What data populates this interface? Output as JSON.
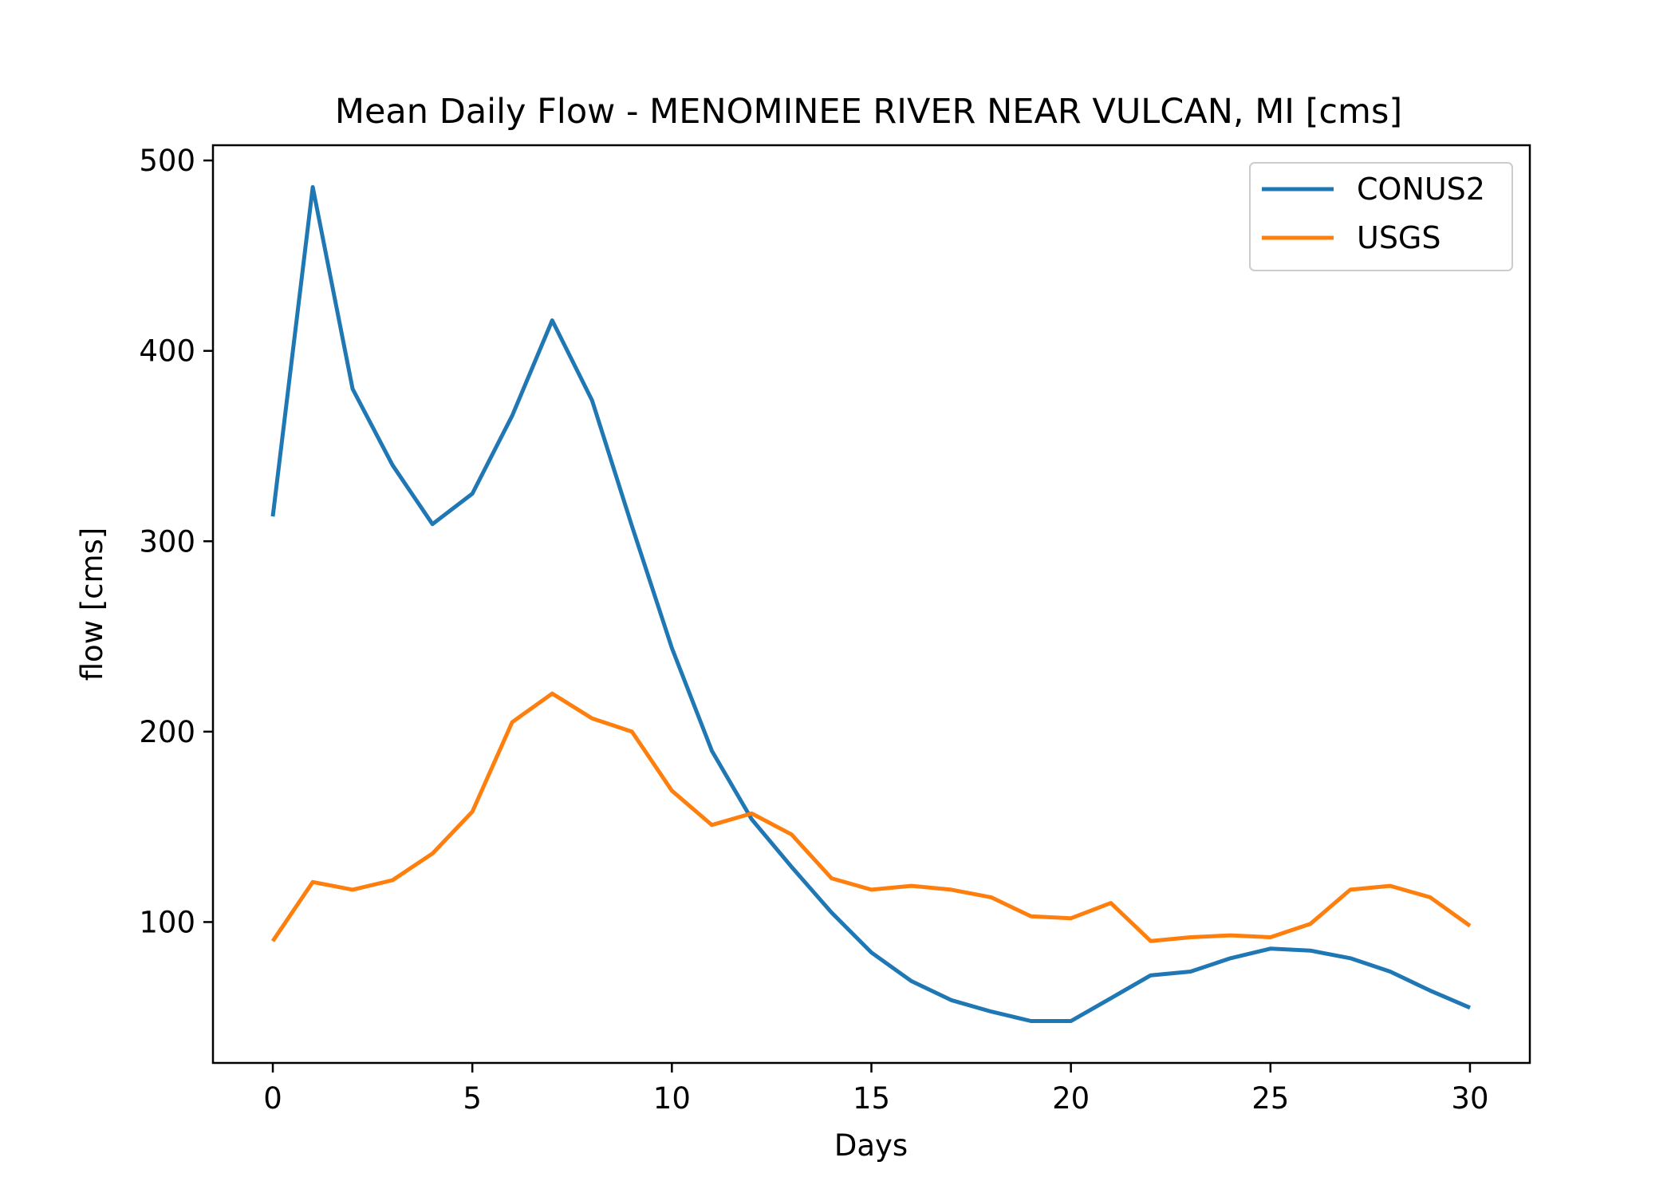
{
  "chart_data": {
    "type": "line",
    "title": "Mean Daily Flow - MENOMINEE RIVER NEAR VULCAN, MI [cms]",
    "xlabel": "Days",
    "ylabel": "flow [cms]",
    "xlim": [
      -1.5,
      31.5
    ],
    "ylim": [
      26,
      508
    ],
    "xticks": [
      0,
      5,
      10,
      15,
      20,
      25,
      30
    ],
    "yticks": [
      100,
      200,
      300,
      400,
      500
    ],
    "grid": false,
    "legend_position": "top-right",
    "x": [
      0,
      1,
      2,
      3,
      4,
      5,
      6,
      7,
      8,
      9,
      10,
      11,
      12,
      13,
      14,
      15,
      16,
      17,
      18,
      19,
      20,
      21,
      22,
      23,
      24,
      25,
      26,
      27,
      28,
      29,
      30
    ],
    "series": [
      {
        "name": "CONUS2",
        "color": "#1f77b4",
        "values": [
          313,
          486,
          380,
          340,
          309,
          325,
          366,
          416,
          374,
          308,
          244,
          190,
          154,
          129,
          105,
          84,
          69,
          59,
          53,
          48,
          48,
          60,
          72,
          74,
          81,
          86,
          85,
          81,
          74,
          64,
          55
        ]
      },
      {
        "name": "USGS",
        "color": "#ff7f0e",
        "values": [
          90,
          121,
          117,
          122,
          136,
          158,
          205,
          220,
          207,
          200,
          169,
          151,
          157,
          146,
          123,
          117,
          119,
          117,
          113,
          103,
          102,
          110,
          90,
          92,
          93,
          92,
          99,
          117,
          119,
          113,
          98
        ]
      }
    ]
  }
}
